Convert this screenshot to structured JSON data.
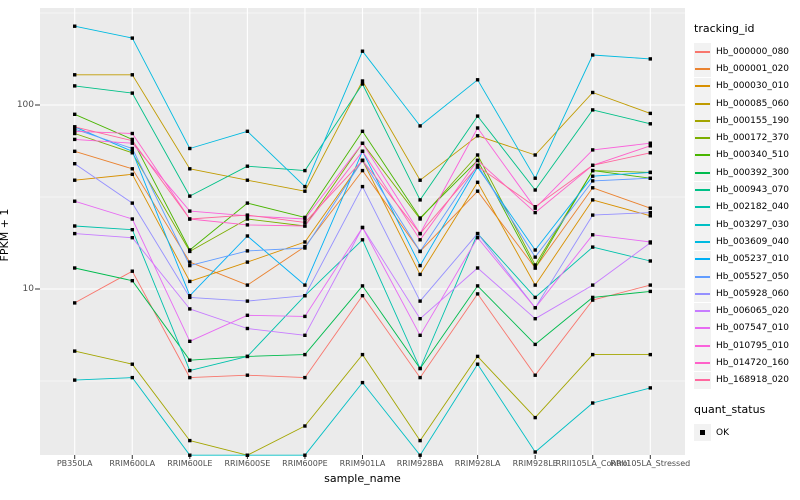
{
  "chart_data": {
    "type": "line",
    "title": "",
    "xlabel": "sample_name",
    "ylabel": "FPKM + 1",
    "y_scale": "log10",
    "ylim": [
      1.2,
      340
    ],
    "grid": true,
    "legend_position": "right",
    "y_ticks": [
      {
        "label": "100",
        "value": 100
      },
      {
        "label": "10",
        "value": 10
      }
    ],
    "y_minor": [
      3.162,
      31.62,
      316.2
    ],
    "categories": [
      "PB350LA",
      "RRIM600LA",
      "RRIM600LE",
      "RRIM600SE",
      "RRIM600PE",
      "RRIM901LA",
      "RRIM928BA",
      "RRIM928LA",
      "RRIM928LE",
      "RRII105LA_Control",
      "RRII105LA_Stressed"
    ],
    "legend": {
      "series_title": "tracking_id",
      "status_title": "quant_status",
      "status_label": "OK"
    },
    "colors": {
      "panel_bg": "#EBEBEB",
      "grid": "#FFFFFF",
      "tick_mark": "#333333",
      "tick_text": "#4D4D4D",
      "point": "#000000"
    },
    "point_shape": "filled-square",
    "series": [
      {
        "name": "Hb_000000_080",
        "color": "#F8766D",
        "values": [
          8.4,
          12.5,
          3.3,
          3.4,
          3.3,
          9.2,
          3.3,
          9.4,
          3.4,
          8.7,
          10.5
        ]
      },
      {
        "name": "Hb_000001_020",
        "color": "#EA8331",
        "values": [
          56,
          45,
          14,
          10.5,
          17,
          44,
          16,
          34,
          13,
          35.5,
          27.5
        ]
      },
      {
        "name": "Hb_000030_010",
        "color": "#D89000",
        "values": [
          39,
          42,
          11,
          14,
          18,
          50,
          12,
          38,
          10.5,
          30.5,
          25
        ]
      },
      {
        "name": "Hb_000085_060",
        "color": "#C09B00",
        "values": [
          146,
          146,
          45,
          39,
          34,
          135,
          39,
          68,
          53.5,
          117,
          90
        ]
      },
      {
        "name": "Hb_000155_190",
        "color": "#A3A500",
        "values": [
          4.6,
          3.9,
          1.5,
          1.25,
          1.8,
          4.4,
          1.5,
          4.3,
          2.0,
          4.4,
          4.4
        ]
      },
      {
        "name": "Hb_000172_370",
        "color": "#7CAE00",
        "values": [
          70,
          55,
          16,
          24,
          22,
          62,
          24,
          53.5,
          13.5,
          44,
          43
        ]
      },
      {
        "name": "Hb_000340_510",
        "color": "#49B500",
        "values": [
          89,
          65,
          16.3,
          29.3,
          24.5,
          72,
          24.3,
          50,
          13,
          44,
          40
        ]
      },
      {
        "name": "Hb_000392_300",
        "color": "#00BB4E",
        "values": [
          13,
          11.1,
          4.1,
          4.3,
          4.4,
          10.4,
          3.7,
          10.4,
          5,
          9,
          9.7
        ]
      },
      {
        "name": "Hb_000943_070",
        "color": "#00C087",
        "values": [
          127,
          116,
          32,
          46.5,
          44,
          130,
          30.5,
          87,
          34.5,
          94,
          79
        ]
      },
      {
        "name": "Hb_002182_040",
        "color": "#00C1AB",
        "values": [
          22,
          21,
          3.6,
          4.3,
          9.2,
          18.5,
          3.7,
          20,
          9,
          16.9,
          14.2
        ]
      },
      {
        "name": "Hb_003297_030",
        "color": "#00BFC4",
        "values": [
          3.2,
          3.3,
          1.25,
          1.25,
          1.25,
          3.1,
          1.25,
          3.9,
          1.3,
          2.4,
          2.9
        ]
      },
      {
        "name": "Hb_003609_040",
        "color": "#00BAE0",
        "values": [
          268,
          231,
          58,
          72,
          36,
          196,
          77,
          137,
          40,
          187,
          178
        ]
      },
      {
        "name": "Hb_005237_010",
        "color": "#00B0F6",
        "values": [
          76,
          56,
          9.2,
          19.4,
          10.5,
          56,
          13.4,
          46,
          16.3,
          41,
          43
        ]
      },
      {
        "name": "Hb_005527_050",
        "color": "#619CFF",
        "values": [
          74,
          58,
          13.4,
          16.1,
          16.7,
          50,
          16,
          47,
          14.9,
          38.7,
          40
        ]
      },
      {
        "name": "Hb_005928_060",
        "color": "#9590FF",
        "values": [
          48,
          29.3,
          9,
          8.6,
          9.2,
          36,
          8.6,
          20,
          7.9,
          25.2,
          26
        ]
      },
      {
        "name": "Hb_006065_020",
        "color": "#C77CFF",
        "values": [
          20,
          19,
          7.8,
          6.1,
          5.6,
          21.6,
          6.9,
          13,
          6.9,
          10.5,
          17.8
        ]
      },
      {
        "name": "Hb_007547_010",
        "color": "#E76BF3",
        "values": [
          30,
          24,
          5.2,
          7.2,
          7.1,
          21.6,
          5.6,
          19,
          7.9,
          19.7,
          18
        ]
      },
      {
        "name": "Hb_010795_010",
        "color": "#FA62DB",
        "values": [
          65,
          62,
          26.5,
          25,
          24,
          62,
          20,
          75,
          27.5,
          57,
          62
        ]
      },
      {
        "name": "Hb_014720_160",
        "color": "#FF61C9",
        "values": [
          72,
          70,
          24,
          22.3,
          22,
          56,
          18.5,
          50,
          26,
          47,
          60
        ]
      },
      {
        "name": "Hb_168918_020",
        "color": "#FF689F",
        "values": [
          76,
          64,
          24,
          25.2,
          23,
          50,
          20,
          46.5,
          28,
          47,
          55
        ]
      }
    ]
  }
}
